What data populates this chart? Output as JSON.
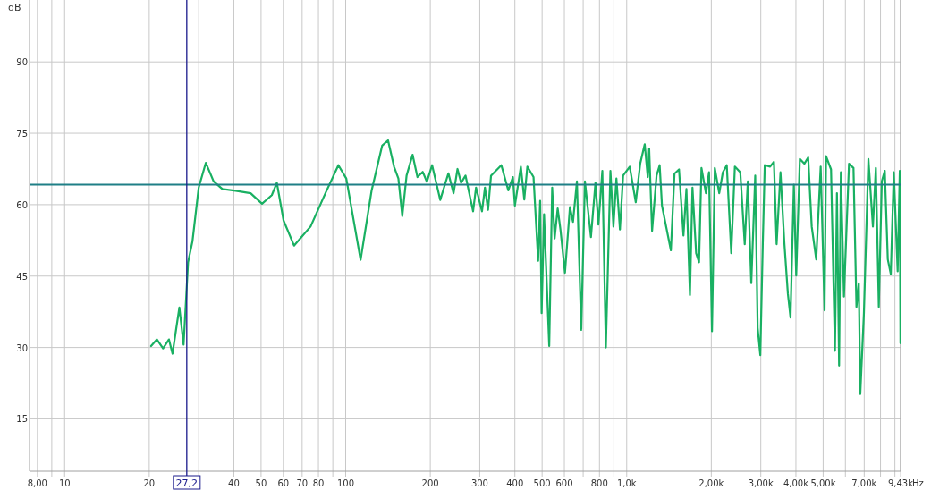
{
  "chart_data": {
    "type": "line",
    "ylabel": "dB",
    "log": "x",
    "grid": true,
    "marker": "none",
    "line_style": "solid",
    "xlim": [
      7.5,
      9430
    ],
    "ylim": [
      4,
      103
    ],
    "xticks": [
      {
        "value": 8,
        "label": "8,00"
      },
      {
        "value": 9,
        "label": null
      },
      10,
      20,
      {
        "value": 30,
        "label": null
      },
      40,
      50,
      60,
      70,
      80,
      {
        "value": 90,
        "label": null
      },
      100,
      200,
      300,
      400,
      500,
      600,
      {
        "value": 700,
        "label": null
      },
      800,
      {
        "value": 900,
        "label": null
      },
      {
        "value": 1000,
        "label": "1,0k"
      },
      {
        "value": 2000,
        "label": "2,00k"
      },
      {
        "value": 3000,
        "label": "3,00k"
      },
      {
        "value": 4000,
        "label": "4,00k"
      },
      {
        "value": 5000,
        "label": "5,00k"
      },
      {
        "value": 6000,
        "label": null
      },
      {
        "value": 7000,
        "label": "7,00k"
      },
      {
        "value": 8000,
        "label": null
      },
      {
        "value": 9000,
        "label": null
      },
      {
        "value": 9430,
        "label": "9,43k"
      }
    ],
    "xlabel": "Hz",
    "yticks": [
      15,
      30,
      45,
      60,
      75,
      90
    ],
    "ref_lines": [
      {
        "axis": "y",
        "value": 64.2,
        "color": "#1f7f86",
        "line_style": "solid"
      },
      {
        "axis": "x",
        "value": 27.2,
        "label": "27,2",
        "color": "#1a1a8c",
        "line_style": "solid"
      }
    ],
    "series": [
      {
        "color": "#19b062",
        "x": [
          20.3,
          21.3,
          22.4,
          23.5,
          24.2,
          25.6,
          26.5,
          27.5,
          28.5,
          30,
          31.8,
          33.9,
          36.4,
          40.6,
          45.9,
          50.4,
          54.6,
          56.9,
          60.1,
          65.5,
          75,
          84.7,
          94.2,
          100.5,
          113,
          123.7,
          134.8,
          141.5,
          148.6,
          154,
          159,
          164.7,
          173,
          180,
          188,
          194.5,
          203,
          217,
          232,
          242,
          250,
          257.5,
          267,
          284,
          291,
          305.5,
          313,
          321,
          329,
          358,
          379,
          393.5,
          400,
          420,
          432,
          443,
          466,
          484,
          492,
          498,
          508,
          530,
          543,
          554,
          568,
          581,
          603,
          628,
          644,
          665,
          689,
          710,
          746,
          774,
          793,
          819,
          843,
          875,
          897,
          919,
          946,
          971,
          1025,
          1077,
          1117,
          1159,
          1188,
          1202,
          1231,
          1277,
          1310,
          1335,
          1436,
          1479,
          1535,
          1592,
          1631,
          1679,
          1714,
          1766,
          1809,
          1845,
          1914,
          1963,
          2011,
          2058,
          2134,
          2198,
          2270,
          2355,
          2426,
          2536,
          2630,
          2697,
          2775,
          2866,
          2924,
          2988,
          3048,
          3099,
          3238,
          3341,
          3415,
          3525,
          3638,
          3745,
          3827,
          3933,
          4010,
          4131,
          4285,
          4424,
          4553,
          4724,
          4900,
          5058,
          5120,
          5334,
          5508,
          5598,
          5698,
          5781,
          5929,
          6180,
          6411,
          6568,
          6696,
          6778,
          6982,
          7244,
          7516,
          7700,
          7889,
          8085,
          8285,
          8492,
          8703,
          8918,
          9206,
          9368,
          9420
        ],
        "values": [
          30.3,
          31.7,
          29.8,
          31.7,
          28.7,
          38.4,
          30.6,
          47.9,
          52.3,
          63.6,
          68.8,
          64.9,
          63.3,
          62.9,
          62.4,
          60.2,
          62,
          64.6,
          56.7,
          51.4,
          55.4,
          62.4,
          68.3,
          65.5,
          48.4,
          63,
          72.4,
          73.5,
          68,
          65.5,
          57.6,
          66.1,
          70.5,
          65.8,
          66.9,
          64.8,
          68.3,
          61,
          66.6,
          62.4,
          67.5,
          64.6,
          66.1,
          58.6,
          63.6,
          58.6,
          63.6,
          58.9,
          66.1,
          68.3,
          63,
          65.8,
          59.8,
          68,
          61.1,
          68,
          65.8,
          48.2,
          60.8,
          37.2,
          58,
          30.3,
          63.6,
          52.9,
          59.2,
          54.8,
          45.7,
          59.5,
          56.4,
          64.9,
          33.7,
          64.9,
          53.2,
          64.6,
          55.8,
          67.1,
          30,
          67.1,
          55.4,
          65.5,
          54.8,
          66.1,
          68,
          60.5,
          68.6,
          72.7,
          65.8,
          71.8,
          54.5,
          66.1,
          68.3,
          59.8,
          50.4,
          66.5,
          67.4,
          53.5,
          63.3,
          41,
          63.6,
          49.8,
          47.9,
          67.7,
          62.4,
          66.8,
          33.4,
          67.7,
          62.4,
          66.8,
          68.3,
          49.8,
          68,
          66.8,
          51.7,
          64.9,
          43.5,
          66.1,
          34.1,
          28.4,
          51.4,
          68.3,
          68,
          69,
          51.7,
          66.8,
          52,
          41.3,
          36.3,
          64.2,
          45.1,
          69.6,
          68.6,
          69.9,
          55.4,
          48.5,
          68,
          37.8,
          70.2,
          67.4,
          29.3,
          62.4,
          26.2,
          66.8,
          40.7,
          68.6,
          67.7,
          38.5,
          43.5,
          20.2,
          37.2,
          69.6,
          55.4,
          67.7,
          38.5,
          64.9,
          67.1,
          48.5,
          45.4,
          66.8,
          46,
          67.1,
          30.9
        ]
      }
    ]
  }
}
